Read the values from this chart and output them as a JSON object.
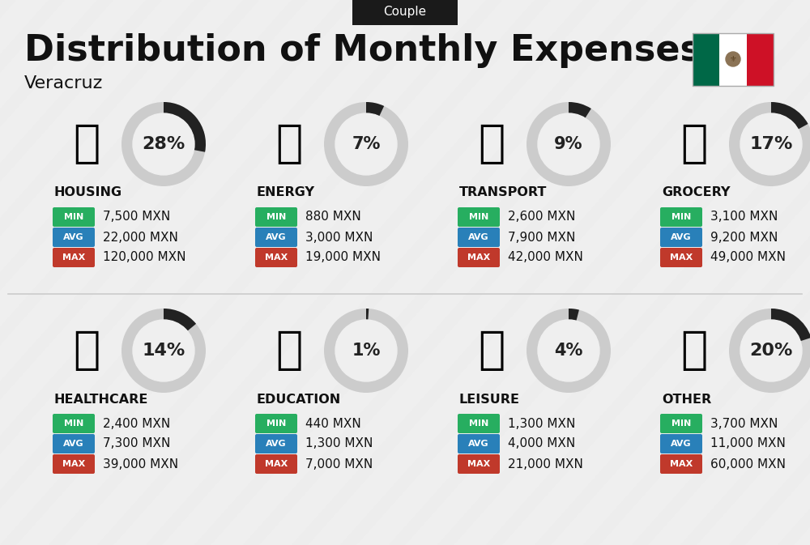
{
  "title": "Distribution of Monthly Expenses",
  "subtitle": "Couple",
  "location": "Veracruz",
  "background_color": "#efefef",
  "categories": [
    {
      "name": "HOUSING",
      "percent": 28,
      "min": "7,500 MXN",
      "avg": "22,000 MXN",
      "max": "120,000 MXN",
      "row": 0,
      "col": 0
    },
    {
      "name": "ENERGY",
      "percent": 7,
      "min": "880 MXN",
      "avg": "3,000 MXN",
      "max": "19,000 MXN",
      "row": 0,
      "col": 1
    },
    {
      "name": "TRANSPORT",
      "percent": 9,
      "min": "2,600 MXN",
      "avg": "7,900 MXN",
      "max": "42,000 MXN",
      "row": 0,
      "col": 2
    },
    {
      "name": "GROCERY",
      "percent": 17,
      "min": "3,100 MXN",
      "avg": "9,200 MXN",
      "max": "49,000 MXN",
      "row": 0,
      "col": 3
    },
    {
      "name": "HEALTHCARE",
      "percent": 14,
      "min": "2,400 MXN",
      "avg": "7,300 MXN",
      "max": "39,000 MXN",
      "row": 1,
      "col": 0
    },
    {
      "name": "EDUCATION",
      "percent": 1,
      "min": "440 MXN",
      "avg": "1,300 MXN",
      "max": "7,000 MXN",
      "row": 1,
      "col": 1
    },
    {
      "name": "LEISURE",
      "percent": 4,
      "min": "1,300 MXN",
      "avg": "4,000 MXN",
      "max": "21,000 MXN",
      "row": 1,
      "col": 2
    },
    {
      "name": "OTHER",
      "percent": 20,
      "min": "3,700 MXN",
      "avg": "11,000 MXN",
      "max": "60,000 MXN",
      "row": 1,
      "col": 3
    }
  ],
  "min_color": "#27ae60",
  "avg_color": "#2980b9",
  "max_color": "#c0392b",
  "donut_bg_color": "#cccccc",
  "donut_fg_color": "#222222",
  "title_color": "#111111",
  "cat_name_color": "#111111",
  "subtitle_bg": "#1a1a1a",
  "subtitle_fg": "#ffffff",
  "divider_color": "#cccccc",
  "flag_green": "#006847",
  "flag_white": "#ffffff",
  "flag_red": "#ce1126",
  "shadow_color": "#d8d8d8"
}
